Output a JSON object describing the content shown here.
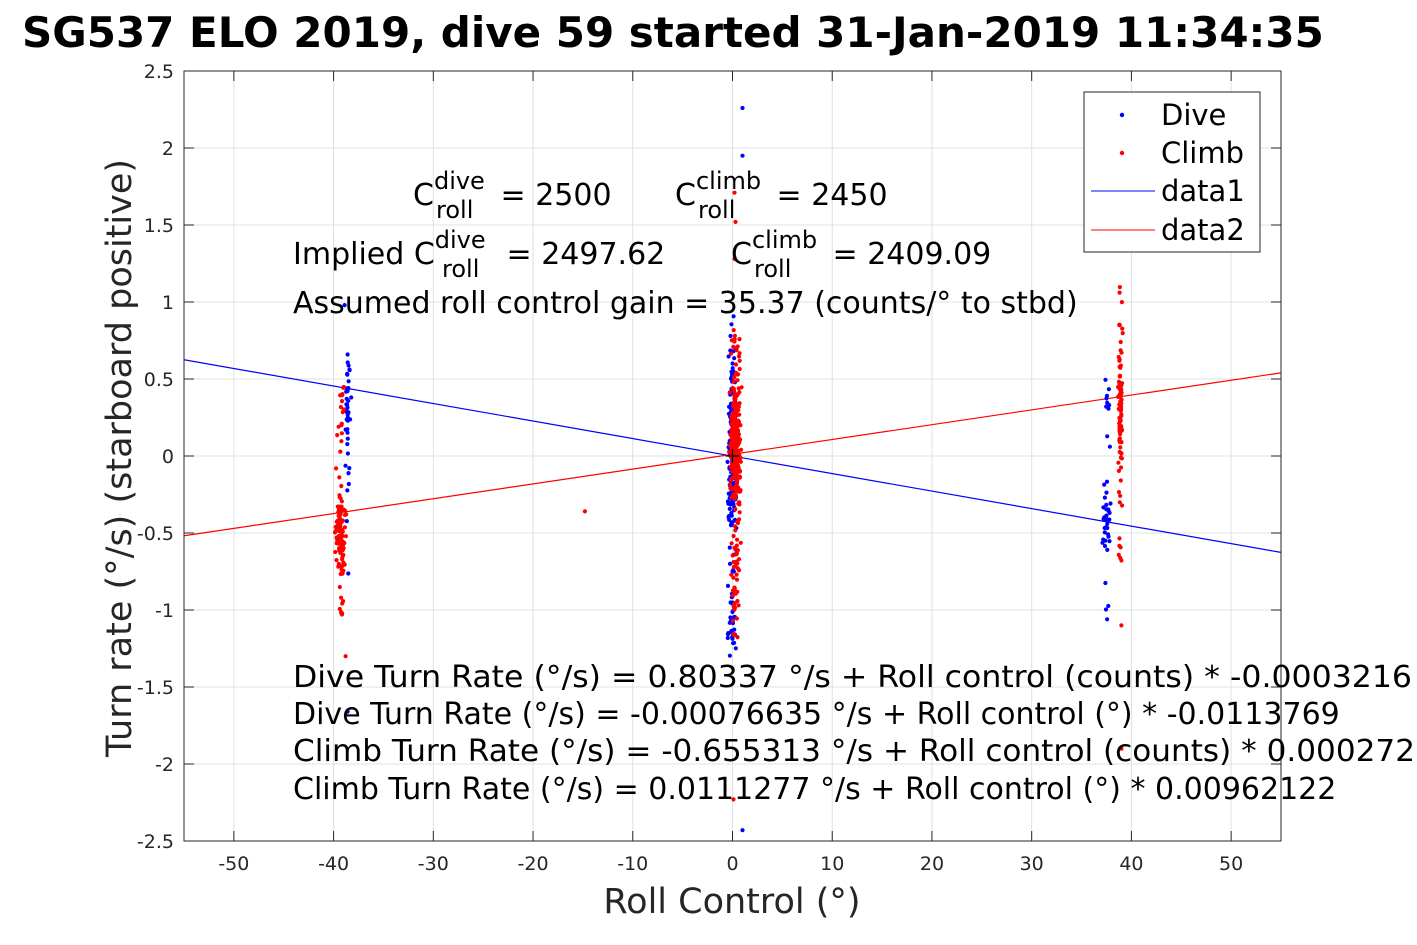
{
  "chart_data": {
    "type": "scatter",
    "title": "SG537 ELO 2019, dive 59 started 31-Jan-2019 11:34:35",
    "xlabel": "Roll Control (°)",
    "ylabel": "Turn rate (°/s) (starboard positive)",
    "xlim": [
      -55,
      55
    ],
    "ylim": [
      -2.5,
      2.5
    ],
    "xticks": [
      -50,
      -40,
      -30,
      -20,
      -10,
      0,
      10,
      20,
      30,
      40,
      50
    ],
    "xtick_labels": [
      "-50",
      "-40",
      "-30",
      "-20",
      "-10",
      "0",
      "10",
      "20",
      "30",
      "40",
      "50"
    ],
    "yticks": [
      -2.5,
      -2,
      -1.5,
      -1,
      -0.5,
      0,
      0.5,
      1,
      1.5,
      2,
      2.5
    ],
    "ytick_labels": [
      "-2.5",
      "-2",
      "-1.5",
      "-1",
      "-0.5",
      "0",
      "0.5",
      "1",
      "1.5",
      "2",
      "2.5"
    ],
    "grid": true,
    "legend_position": "top-right",
    "colors": {
      "dive": "#0000ff",
      "climb": "#ff0000",
      "axes": "#262626",
      "grid": "#e0e0e0"
    },
    "series": [
      {
        "name": "Dive",
        "kind": "points",
        "clusters": [
          {
            "x": -38.6,
            "x_spread": 0.5,
            "y_min": -0.85,
            "y_max": 0.73,
            "y_center": 0.25,
            "count": 40
          },
          {
            "x": 0.0,
            "x_spread": 0.7,
            "y_min": -1.3,
            "y_max": 0.95,
            "y_center": -0.05,
            "count": 230
          },
          {
            "x": 37.5,
            "x_spread": 0.6,
            "y_min": -1.25,
            "y_max": 0.52,
            "y_center": -0.45,
            "count": 45
          }
        ],
        "outliers": [
          {
            "x": 1.0,
            "y": 2.26
          },
          {
            "x": 1.0,
            "y": 1.95
          },
          {
            "x": 1.0,
            "y": -2.43
          },
          {
            "x": -38.6,
            "y": -1.66
          },
          {
            "x": -38.9,
            "y": 0.98
          }
        ]
      },
      {
        "name": "Climb",
        "kind": "points",
        "clusters": [
          {
            "x": -39.3,
            "x_spread": 0.8,
            "y_min": -1.05,
            "y_max": 0.45,
            "y_center": -0.5,
            "count": 130
          },
          {
            "x": 0.3,
            "x_spread": 0.9,
            "y_min": -1.2,
            "y_max": 0.85,
            "y_center": 0.05,
            "count": 330
          },
          {
            "x": 38.9,
            "x_spread": 0.35,
            "y_min": -0.7,
            "y_max": 1.1,
            "y_center": 0.3,
            "count": 110
          }
        ],
        "outliers": [
          {
            "x": -14.8,
            "y": -0.36
          },
          {
            "x": 0.2,
            "y": 1.71
          },
          {
            "x": 0.3,
            "y": 1.52
          },
          {
            "x": 0.2,
            "y": 1.28
          },
          {
            "x": 0.1,
            "y": -2.23
          },
          {
            "x": 39.0,
            "y": -1.9
          },
          {
            "x": 39.0,
            "y": -1.1
          },
          {
            "x": -38.8,
            "y": -1.3
          }
        ]
      },
      {
        "name": "data1",
        "kind": "line",
        "points": [
          [
            -55,
            0.625
          ],
          [
            55,
            -0.626
          ]
        ]
      },
      {
        "name": "data2",
        "kind": "line",
        "points": [
          [
            -55,
            -0.518
          ],
          [
            55,
            0.54
          ]
        ]
      }
    ],
    "annotations": {
      "c_roll_dive": {
        "base": "C",
        "sub": "roll",
        "sup": "dive",
        "tail": " = 2500"
      },
      "c_roll_climb": {
        "base": "C",
        "sub": "roll",
        "sup": "climb",
        "tail": " = 2450"
      },
      "implied_dive": {
        "prefix": "Implied C",
        "sub": "roll",
        "sup": "dive",
        "tail": " = 2497.62"
      },
      "implied_climb": {
        "base": "C",
        "sub": "roll",
        "sup": "climb",
        "tail": " = 2409.09"
      },
      "gain": "Assumed roll control gain = 35.37 (counts/° to stbd)",
      "fit_lines": [
        "Dive Turn Rate (°/s) = 0.80337 °/s + Roll control (counts) * -0.0003216",
        "Dive Turn Rate (°/s) = -0.00076635 °/s + Roll control (°) * -0.0113769",
        "Climb Turn Rate (°/s) = -0.655313 °/s + Roll control (counts) * 0.000272",
        "Climb Turn Rate (°/s) = 0.0111277 °/s + Roll control (°) * 0.00962122"
      ]
    }
  }
}
